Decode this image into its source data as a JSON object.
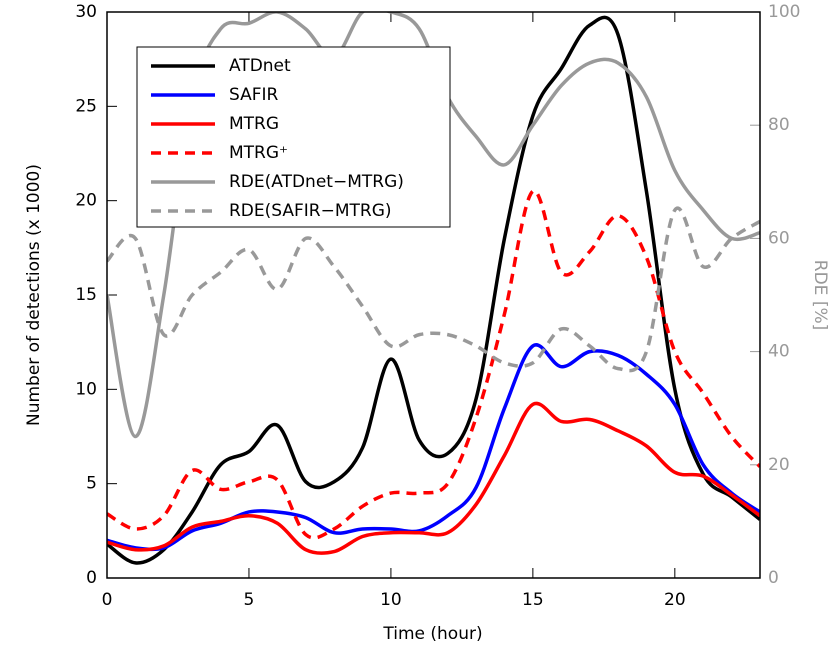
{
  "chart_data": {
    "type": "line",
    "xlabel": "Time (hour)",
    "ylabel": "Number of detections (x 1000)",
    "y2label": "RDE [%]",
    "x": [
      0,
      1,
      2,
      3,
      4,
      5,
      6,
      7,
      8,
      9,
      10,
      11,
      12,
      13,
      14,
      15,
      16,
      17,
      18,
      19,
      20,
      21,
      22,
      23
    ],
    "xlim": [
      0,
      23
    ],
    "xticks": [
      0,
      5,
      10,
      15,
      20
    ],
    "ylim": [
      0,
      30
    ],
    "yticks": [
      0,
      5,
      10,
      15,
      20,
      25,
      30
    ],
    "y2lim": [
      0,
      100
    ],
    "y2ticks": [
      0,
      20,
      40,
      60,
      80,
      100
    ],
    "legend": "upper left",
    "series": [
      {
        "name": "ATDnet",
        "color": "#000000",
        "linestyle": "solid",
        "values": [
          1.8,
          0.8,
          1.5,
          3.5,
          6.0,
          6.7,
          8.1,
          5.1,
          5.1,
          6.9,
          11.6,
          7.3,
          6.6,
          9.5,
          18.0,
          24.5,
          27.0,
          29.3,
          28.8,
          20.5,
          10.0,
          5.5,
          4.3,
          3.1
        ]
      },
      {
        "name": "SAFIR",
        "color": "#0000ff",
        "linestyle": "solid",
        "values": [
          2.0,
          1.6,
          1.6,
          2.5,
          2.9,
          3.5,
          3.5,
          3.2,
          2.4,
          2.6,
          2.6,
          2.5,
          3.3,
          4.8,
          9.0,
          12.3,
          11.2,
          12.0,
          11.8,
          10.8,
          9.2,
          6.0,
          4.5,
          3.5
        ]
      },
      {
        "name": "MTRG",
        "color": "#ff0000",
        "linestyle": "solid",
        "values": [
          1.9,
          1.5,
          1.7,
          2.7,
          3.0,
          3.3,
          2.9,
          1.5,
          1.4,
          2.2,
          2.4,
          2.4,
          2.4,
          3.9,
          6.5,
          9.2,
          8.3,
          8.4,
          7.8,
          7.0,
          5.6,
          5.4,
          4.4,
          3.3
        ]
      },
      {
        "name": "MTRG⁺",
        "color": "#ff0000",
        "linestyle": "dashed",
        "values": [
          3.4,
          2.6,
          3.3,
          5.7,
          4.7,
          5.1,
          5.2,
          2.3,
          2.6,
          3.8,
          4.5,
          4.5,
          5.0,
          8.5,
          14.0,
          20.5,
          16.2,
          17.3,
          19.2,
          17.0,
          12.0,
          9.8,
          7.5,
          5.9
        ]
      },
      {
        "name": "RDE(ATDnet−MTRG)",
        "color": "#999999",
        "linestyle": "solid",
        "axis": "y2",
        "values": [
          50,
          25,
          50,
          85,
          97,
          98,
          100,
          97,
          92,
          100,
          100,
          97,
          85,
          78,
          73,
          80,
          87,
          91,
          91,
          85,
          72,
          65,
          60,
          61
        ]
      },
      {
        "name": "RDE(SAFIR−MTRG)",
        "color": "#999999",
        "linestyle": "dashed",
        "axis": "y2",
        "values": [
          56,
          60,
          43,
          50,
          54,
          58,
          51,
          60,
          55,
          48,
          41,
          43,
          43,
          41,
          38,
          38,
          44,
          41,
          37,
          40,
          65,
          55,
          60,
          63
        ]
      }
    ]
  }
}
